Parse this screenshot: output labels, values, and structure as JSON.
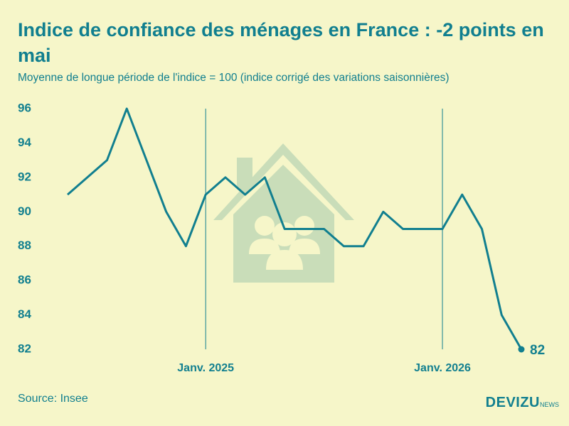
{
  "chart_data": {
    "type": "line",
    "title": "Indice de confiance des ménages en France : -2 points en mai",
    "subtitle": "Moyenne de longue période de l'indice = 100 (indice corrigé des variations saisonnières)",
    "source": "Source: Insee",
    "brand": "DEVIZU",
    "brand_suffix": "NEWS",
    "categories": [
      null,
      null,
      null,
      null,
      null,
      null,
      null,
      "Janv. 2025",
      null,
      null,
      null,
      null,
      null,
      null,
      null,
      null,
      null,
      null,
      null,
      "Janv. 2026",
      null,
      null,
      null,
      null
    ],
    "series": [
      {
        "name": "Indice de confiance des ménages",
        "color": "#117f8f",
        "values": [
          91,
          92,
          93,
          96,
          93,
          90,
          88,
          91,
          92,
          91,
          92,
          89,
          89,
          89,
          88,
          88,
          90,
          89,
          89,
          89,
          91,
          89,
          84,
          82
        ]
      }
    ],
    "ylim": [
      82,
      96
    ],
    "yticks": [
      82,
      84,
      86,
      88,
      90,
      92,
      94,
      96
    ]
  }
}
